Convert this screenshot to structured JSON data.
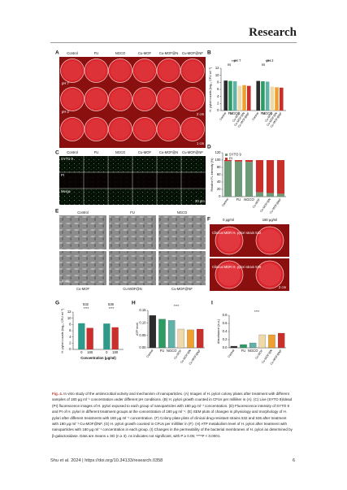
{
  "header": {
    "journal": "Research"
  },
  "figure": {
    "panels": {
      "A": {
        "label": "A",
        "columns": [
          "Control",
          "FU",
          "NGCO",
          "Cu-MOF",
          "Cu-MOF@N",
          "Cu-MOF@NF"
        ],
        "rows": [
          "pH 7",
          "pH 2"
        ],
        "scale_bars": [
          "2 cm",
          "1 cm"
        ]
      },
      "B": {
        "label": "B",
        "chart": {
          "type": "bar",
          "y_label": "H. pylori counts (log₁₀ CFU ml⁻¹)",
          "categories": [
            "Control",
            "FU",
            "NGCO",
            "Cu-MOF",
            "Cu-MOF@N",
            "Cu-MOF@NF"
          ],
          "colors": [
            "#2b2b2b",
            "#2e9b63",
            "#5fb3a8",
            "#f0d9a8",
            "#f0a030",
            "#c9302c"
          ],
          "series": [
            {
              "name": "pH 7",
              "values": [
                8.5,
                8.4,
                8.3,
                7.0,
                7.2,
                7.0
              ]
            },
            {
              "name": "pH 2",
              "values": [
                8.4,
                8.3,
                8.2,
                6.8,
                6.6,
                6.5
              ]
            }
          ],
          "ylim": [
            0,
            12
          ],
          "yticks": [
            0,
            2,
            4,
            6,
            8,
            10,
            12
          ],
          "annotations": [
            "****",
            "ns",
            "****",
            "ns"
          ]
        }
      },
      "C": {
        "label": "C",
        "columns": [
          "Control",
          "FU",
          "NGCO",
          "Cu-MOF",
          "Cu-MOF@N",
          "Cu-MOF@NF"
        ],
        "rows": [
          "SYTO 9",
          "PI",
          "Merge"
        ],
        "scale_bar": "20 μm"
      },
      "D": {
        "label": "D",
        "chart": {
          "type": "stacked_bar",
          "y_label": "Relative FL intensity (%)",
          "categories": [
            "Control",
            "FU",
            "NGCO",
            "Cu-MOF",
            "Cu-MOF@N",
            "Cu-MOF@NF"
          ],
          "series": [
            {
              "name": "SYTO 9",
              "color": "#6f9a78",
              "values": [
                97,
                96,
                95,
                12,
                10,
                8
              ]
            },
            {
              "name": "PI",
              "color": "#c9302c",
              "values": [
                3,
                4,
                5,
                88,
                90,
                92
              ]
            }
          ],
          "ylim": [
            0,
            120
          ],
          "yticks": [
            0,
            20,
            40,
            60,
            80,
            100,
            120
          ]
        }
      },
      "E": {
        "label": "E",
        "columns": [
          "Control",
          "FU",
          "NGCO",
          "Cu-MOF",
          "Cu-MOF@N",
          "Cu-MOF@NF"
        ],
        "scale_bar": "1 μm"
      },
      "F": {
        "label": "F",
        "columns": [
          "0 μg/ml",
          "180 μg/ml"
        ],
        "rows": [
          "Clinical MDR H. pylori strain 532",
          "Clinical MDR H. pylori strain 536"
        ],
        "scale_bar": "2 cm"
      },
      "G": {
        "label": "G",
        "chart": {
          "type": "bar",
          "y_label": "H. pylori counts (log₁₀ CFU ml⁻¹)",
          "x_label": "Concentration (μg/ml)",
          "categories": [
            "0",
            "180",
            "0",
            "180"
          ],
          "colors": [
            "#2e9b8a",
            "#c9302c"
          ],
          "series": [
            {
              "name": "532",
              "values": [
                8.4,
                6.9
              ]
            },
            {
              "name": "536",
              "values": [
                8.3,
                7.1
              ]
            }
          ],
          "ylim": [
            0,
            12
          ],
          "yticks": [
            0,
            2,
            4,
            6,
            8,
            10,
            12
          ],
          "annotations": [
            "****",
            "****"
          ]
        }
      },
      "H": {
        "label": "H",
        "chart": {
          "type": "bar",
          "y_label": "ATP level",
          "categories": [
            "Control",
            "FU",
            "NGCO",
            "Cu-MOF",
            "Cu-MOF@N",
            "Cu-MOF@NF"
          ],
          "colors": [
            "#2b2b2b",
            "#2e9b63",
            "#5fb3a8",
            "#f0d9a8",
            "#f0a030",
            "#c9302c"
          ],
          "values": [
            0.13,
            0.115,
            0.11,
            0.075,
            0.072,
            0.075
          ],
          "ylim": [
            0,
            0.15
          ],
          "yticks": [
            {
              "value": 0,
              "label": "0.00"
            },
            {
              "value": 0.05,
              "label": "0.05"
            },
            {
              "value": 0.1,
              "label": "0.10"
            },
            {
              "value": 0.15,
              "label": "0.15"
            }
          ],
          "annotations": [
            "****"
          ]
        }
      },
      "I": {
        "label": "I",
        "chart": {
          "type": "bar",
          "y_label": "Absorbance (a.u.)",
          "categories": [
            "Control",
            "FU",
            "NGCO",
            "Cu-MOF",
            "Cu-MOF@N",
            "Cu-MOF@NF"
          ],
          "colors": [
            "#2b2b2b",
            "#2e9b63",
            "#5fb3a8",
            "#f0d9a8",
            "#f0a030",
            "#c9302c"
          ],
          "values": [
            0.04,
            0.08,
            0.12,
            0.32,
            0.32,
            0.36
          ],
          "ylim": [
            0,
            0.8
          ],
          "yticks": [
            {
              "value": 0,
              "label": "0.0"
            },
            {
              "value": 0.2,
              "label": "0.2"
            },
            {
              "value": 0.4,
              "label": "0.4"
            },
            {
              "value": 0.6,
              "label": "0.6"
            },
            {
              "value": 0.8,
              "label": "0.8"
            }
          ],
          "annotations": [
            "****"
          ]
        }
      }
    },
    "caption": {
      "label": "Fig. 4.",
      "text": "In vitro study of the antimicrobial activity and mechanism of nanoparticles. (A) Images of H. pylori colony plates after treatment with different samples of 180 μg ml⁻¹ concentration under different pH conditions. (B) H. pylori growth counted in CFUs per milliliter in (A). (C) Live (SYTO 9)/dead (PI) fluorescence images of H. pylori exposed to each group of nanoparticles with 180 μg ml⁻¹ concentration. (D) Fluorescence intensity of SYTO 9 and PI of H. pylori in different treatment groups at the concentration of 180 μg ml⁻¹. (E) SEM plots of changes in physiology and morphology of H. pylori after different treatments with 180 μg ml⁻¹ concentration. (F) Colony plate plots of clinical drug-resistant strains 532 and 536 after treatment with 180 μg ml⁻¹ Cu-MOF@NF. (G) H. pylori growth counted in CFUs per milliliter in (F). (H) ATP metabolism level of H. pylori after treatment with nanoparticles with 180 μg ml⁻¹ concentration in each group. (I) Changes in the permeability of the bacterial membranes of H. pylori as determined by β-galactosidase. Data are means ± SD (n ≥ 3). ns indicates not significant, with P ≥ 0.05; ****P < 0.0001."
    }
  },
  "footer": {
    "citation": "Shu et al. 2024 | https://doi.org/10.34133/research.0358",
    "page": "6"
  }
}
